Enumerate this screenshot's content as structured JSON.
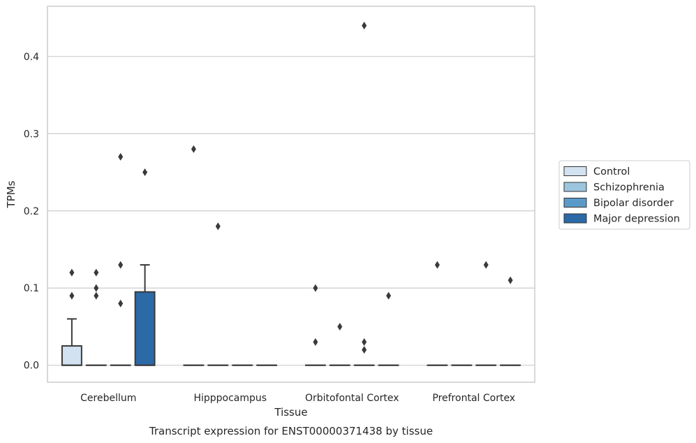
{
  "chart_data": {
    "type": "box",
    "title": "",
    "caption": "Transcript expression for ENST00000371438 by tissue",
    "xlabel": "Tissue",
    "ylabel": "TPMs",
    "ylim": [
      -0.022,
      0.465
    ],
    "yticks": [
      0.0,
      0.1,
      0.2,
      0.3,
      0.4
    ],
    "ytick_labels": [
      "0.0",
      "0.1",
      "0.2",
      "0.3",
      "0.4"
    ],
    "grid": "horizontal",
    "legend_position": "right",
    "categories": [
      "Cerebellum",
      "Hipppocampus",
      "Orbitofontal Cortex",
      "Prefrontal Cortex"
    ],
    "series": [
      {
        "name": "Control",
        "color": "#d2e2f1",
        "boxes": [
          {
            "q1": 0.0,
            "median": 0.0,
            "q3": 0.025,
            "whisker_low": 0.0,
            "whisker_high": 0.06,
            "outliers": [
              0.09,
              0.12
            ]
          },
          {
            "q1": 0.0,
            "median": 0.0,
            "q3": 0.0,
            "whisker_low": 0.0,
            "whisker_high": 0.0,
            "outliers": [
              0.28
            ]
          },
          {
            "q1": 0.0,
            "median": 0.0,
            "q3": 0.0,
            "whisker_low": 0.0,
            "whisker_high": 0.0,
            "outliers": [
              0.03,
              0.1
            ]
          },
          {
            "q1": 0.0,
            "median": 0.0,
            "q3": 0.0,
            "whisker_low": 0.0,
            "whisker_high": 0.0,
            "outliers": [
              0.13
            ]
          }
        ]
      },
      {
        "name": "Schizophrenia",
        "color": "#9cc5de",
        "boxes": [
          {
            "q1": 0.0,
            "median": 0.0,
            "q3": 0.0,
            "whisker_low": 0.0,
            "whisker_high": 0.0,
            "outliers": [
              0.09,
              0.1,
              0.12
            ]
          },
          {
            "q1": 0.0,
            "median": 0.0,
            "q3": 0.0,
            "whisker_low": 0.0,
            "whisker_high": 0.0,
            "outliers": [
              0.18
            ]
          },
          {
            "q1": 0.0,
            "median": 0.0,
            "q3": 0.0,
            "whisker_low": 0.0,
            "whisker_high": 0.0,
            "outliers": [
              0.05
            ]
          },
          {
            "q1": 0.0,
            "median": 0.0,
            "q3": 0.0,
            "whisker_low": 0.0,
            "whisker_high": 0.0,
            "outliers": []
          }
        ]
      },
      {
        "name": "Bipolar disorder",
        "color": "#5b9ac8",
        "boxes": [
          {
            "q1": 0.0,
            "median": 0.0,
            "q3": 0.0,
            "whisker_low": 0.0,
            "whisker_high": 0.0,
            "outliers": [
              0.08,
              0.13,
              0.27
            ]
          },
          {
            "q1": 0.0,
            "median": 0.0,
            "q3": 0.0,
            "whisker_low": 0.0,
            "whisker_high": 0.0,
            "outliers": []
          },
          {
            "q1": 0.0,
            "median": 0.0,
            "q3": 0.0,
            "whisker_low": 0.0,
            "whisker_high": 0.0,
            "outliers": [
              0.02,
              0.03,
              0.44
            ]
          },
          {
            "q1": 0.0,
            "median": 0.0,
            "q3": 0.0,
            "whisker_low": 0.0,
            "whisker_high": 0.0,
            "outliers": [
              0.13
            ]
          }
        ]
      },
      {
        "name": "Major depression",
        "color": "#2b69a7",
        "boxes": [
          {
            "q1": 0.0,
            "median": 0.0,
            "q3": 0.095,
            "whisker_low": 0.0,
            "whisker_high": 0.13,
            "outliers": [
              0.25
            ]
          },
          {
            "q1": 0.0,
            "median": 0.0,
            "q3": 0.0,
            "whisker_low": 0.0,
            "whisker_high": 0.0,
            "outliers": []
          },
          {
            "q1": 0.0,
            "median": 0.0,
            "q3": 0.0,
            "whisker_low": 0.0,
            "whisker_high": 0.0,
            "outliers": [
              0.09
            ]
          },
          {
            "q1": 0.0,
            "median": 0.0,
            "q3": 0.0,
            "whisker_low": 0.0,
            "whisker_high": 0.0,
            "outliers": [
              0.11
            ]
          }
        ]
      }
    ],
    "colors": {
      "grid": "#cccccc",
      "frame": "#cccccc",
      "line": "#3a3a3a"
    }
  }
}
